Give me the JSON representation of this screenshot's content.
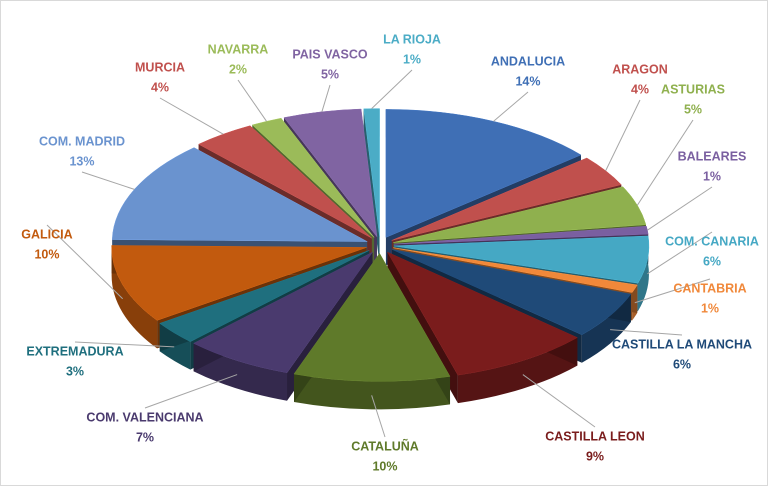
{
  "chart_data": {
    "type": "pie",
    "categories": [
      "ANDALUCIA",
      "ARAGON",
      "ASTURIAS",
      "BALEARES",
      "COM. CANARIA",
      "CANTABRIA",
      "CASTILLA LA MANCHA",
      "CASTILLA LEON",
      "CATALUÑA",
      "COM. VALENCIANA",
      "EXTREMADURA",
      "GALICIA",
      "COM. MADRID",
      "MURCIA",
      "NAVARRA",
      "PAIS VASCO",
      "LA RIOJA"
    ],
    "values": [
      14,
      4,
      5,
      1,
      6,
      1,
      6,
      9,
      10,
      7,
      3,
      10,
      13,
      4,
      2,
      5,
      1
    ],
    "value_labels": [
      "14%",
      "4%",
      "5%",
      "1%",
      "6%",
      "1%",
      "6%",
      "9%",
      "10%",
      "7%",
      "3%",
      "10%",
      "13%",
      "4%",
      "2%",
      "5%",
      "1%"
    ],
    "colors": [
      "#3f6fb5",
      "#c0504d",
      "#8fb04e",
      "#7a5fa0",
      "#45a8c4",
      "#f0883a",
      "#1f4a78",
      "#7a1c1c",
      "#5f7a2a",
      "#4a3a6e",
      "#1f6f7e",
      "#c25a0e",
      "#6a93cf",
      "#c0504d",
      "#9bbb59",
      "#8064a2",
      "#4bacc6"
    ]
  }
}
